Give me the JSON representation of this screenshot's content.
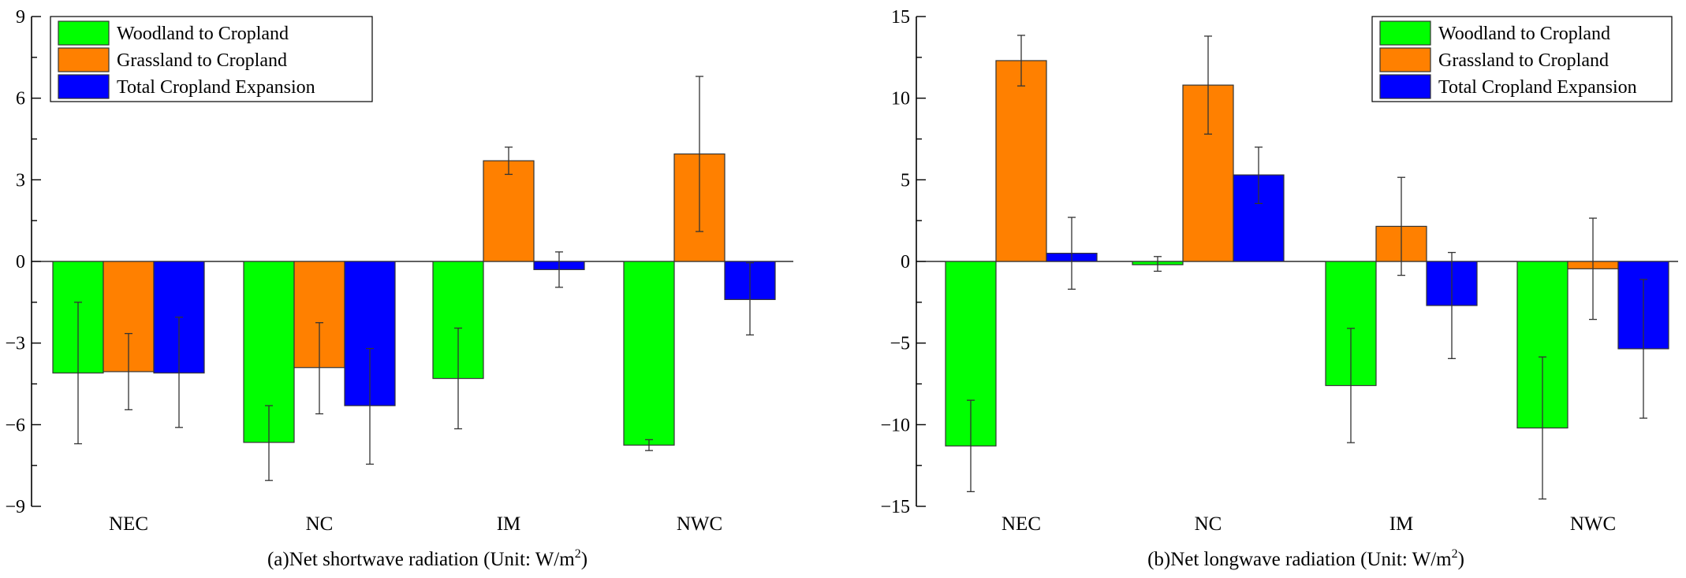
{
  "chart_data": [
    {
      "type": "bar",
      "title": "",
      "xlabel": "(a)Net shortwave radiation (Unit: W/m",
      "xlabel_sup": "2",
      "xlabel_end": ")",
      "ylabel": "",
      "ylim": [
        -9,
        9
      ],
      "yticks": [
        -9,
        -6,
        -3,
        0,
        3,
        6,
        9
      ],
      "ytick_labels": [
        "−9",
        "−6",
        "−3",
        "0",
        "3",
        "6",
        "9"
      ],
      "categories": [
        "NEC",
        "NC",
        "IM",
        "NWC"
      ],
      "legend_position": "top-left",
      "series": [
        {
          "name": "Woodland to Cropland",
          "color": "#00ff00",
          "values": [
            -4.1,
            -6.65,
            -4.3,
            -6.75
          ],
          "err_low": [
            -6.7,
            -8.05,
            -6.15,
            -6.95
          ],
          "err_high": [
            -1.5,
            -5.3,
            -2.45,
            -6.55
          ]
        },
        {
          "name": "Grassland to Cropland",
          "color": "#ff8000",
          "values": [
            -4.05,
            -3.9,
            3.7,
            3.95
          ],
          "err_low": [
            -5.45,
            -5.6,
            3.2,
            1.1
          ],
          "err_high": [
            -2.65,
            -2.25,
            4.2,
            6.8
          ]
        },
        {
          "name": "Total Cropland Expansion",
          "color": "#0000ff",
          "values": [
            -4.1,
            -5.3,
            -0.3,
            -1.4
          ],
          "err_low": [
            -6.1,
            -7.45,
            -0.95,
            -2.7
          ],
          "err_high": [
            -2.05,
            -3.2,
            0.35,
            -0.05
          ]
        }
      ]
    },
    {
      "type": "bar",
      "title": "",
      "xlabel": "(b)Net longwave radiation (Unit: W/m",
      "xlabel_sup": "2",
      "xlabel_end": ")",
      "ylabel": "",
      "ylim": [
        -15,
        15
      ],
      "yticks": [
        -15,
        -10,
        -5,
        0,
        5,
        10,
        15
      ],
      "ytick_labels": [
        "−15",
        "−10",
        "−5",
        "0",
        "5",
        "10",
        "15"
      ],
      "categories": [
        "NEC",
        "NC",
        "IM",
        "NWC"
      ],
      "legend_position": "top-right",
      "series": [
        {
          "name": "Woodland to Cropland",
          "color": "#00ff00",
          "values": [
            -11.3,
            -0.2,
            -7.6,
            -10.2
          ],
          "err_low": [
            -14.1,
            -0.6,
            -11.1,
            -14.55
          ],
          "err_high": [
            -8.5,
            0.3,
            -4.1,
            -5.85
          ]
        },
        {
          "name": "Grassland to Cropland",
          "color": "#ff8000",
          "values": [
            12.3,
            10.8,
            2.15,
            -0.45
          ],
          "err_low": [
            10.75,
            7.8,
            -0.85,
            -3.55
          ],
          "err_high": [
            13.85,
            13.8,
            5.15,
            2.65
          ]
        },
        {
          "name": "Total Cropland Expansion",
          "color": "#0000ff",
          "values": [
            0.5,
            5.3,
            -2.7,
            -5.35
          ],
          "err_low": [
            -1.7,
            3.55,
            -5.95,
            -9.6
          ],
          "err_high": [
            2.7,
            7.0,
            0.55,
            -1.1
          ]
        }
      ]
    }
  ]
}
